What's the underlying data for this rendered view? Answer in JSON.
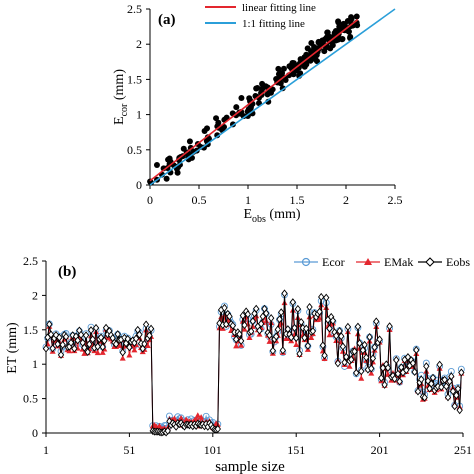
{
  "chart_data": [
    {
      "panel": "(a)",
      "type": "scatter",
      "xlabel_main": "E",
      "xlabel_sub": "obs",
      "xlabel_unit": " (mm)",
      "ylabel_main": "E",
      "ylabel_sub": "cor",
      "ylabel_unit": " (mm)",
      "xlim": [
        0,
        2.5
      ],
      "ylim": [
        0,
        2.5
      ],
      "xticks": [
        "0",
        "0.5",
        "1",
        "1.5",
        "2",
        "2.5"
      ],
      "yticks": [
        "0",
        "0.5",
        "1",
        "1.5",
        "2",
        "2.5"
      ],
      "legend": [
        {
          "label": "linear fitting line",
          "color": "#e3262e"
        },
        {
          "label": "1:1 fitting line",
          "color": "#2b9fd9"
        }
      ],
      "linear_fit": {
        "slope": 1.08,
        "intercept": 0.06
      },
      "one_to_one": {
        "slope": 1.0,
        "intercept": 0.0
      },
      "point_count": 220,
      "point_color": "#000000"
    },
    {
      "panel": "(b)",
      "type": "line",
      "xlabel": "sample size",
      "ylabel": "ET (mm)",
      "xlim": [
        1,
        251
      ],
      "ylim": [
        0,
        2.5
      ],
      "xticks": [
        "1",
        "51",
        "101",
        "151",
        "201",
        "251"
      ],
      "yticks": [
        "0",
        "0.5",
        "1",
        "1.5",
        "2",
        "2.5"
      ],
      "series": [
        {
          "name": "Ecor",
          "color": "#5b9bd5",
          "marker": "circle"
        },
        {
          "name": "EMak",
          "color": "#e3262e",
          "marker": "triangle"
        },
        {
          "name": "Eobs",
          "color": "#000000",
          "marker": "diamond"
        }
      ],
      "segments": [
        {
          "from": 1,
          "to": 64,
          "base": 1.35,
          "spread": 0.3
        },
        {
          "from": 65,
          "to": 74,
          "base": 0.02,
          "spread": 0.02
        },
        {
          "from": 75,
          "to": 100,
          "base": 0.12,
          "spread": 0.06
        },
        {
          "from": 101,
          "to": 104,
          "base": 0.05,
          "spread": 0.04
        },
        {
          "from": 105,
          "to": 250,
          "base": 1.5,
          "spread": 0.45
        }
      ]
    }
  ]
}
